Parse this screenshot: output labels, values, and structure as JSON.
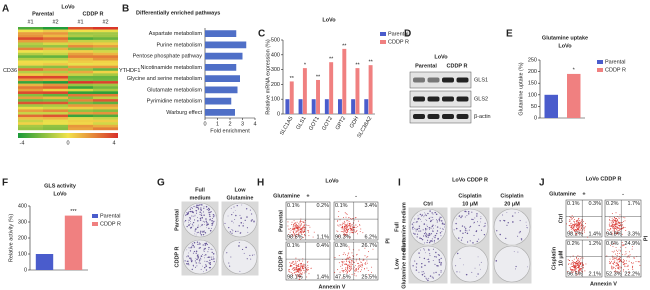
{
  "panel_labels": [
    "A",
    "B",
    "C",
    "D",
    "E",
    "F",
    "G",
    "H",
    "I",
    "J"
  ],
  "heatmap": {
    "title": "LoVo",
    "groups": [
      "Parental",
      "CDDP R"
    ],
    "replicates": [
      "#1",
      "#2",
      "#1",
      "#2"
    ],
    "left_label": "CD36",
    "right_label": "YTHDF1",
    "scale_labels": [
      "-4",
      "0",
      "4"
    ]
  },
  "chart_data": [
    {
      "type": "hbar",
      "title": "Differentially enriched pathways",
      "categories": [
        "Aspartate metabolism",
        "Purine metabolism",
        "Pentose phosphate pathway",
        "Nicotinamide metabolism",
        "Glycine and serine metabolism",
        "Glutamate metabolism",
        "Pyrimidine metabolism",
        "Warburg effect"
      ],
      "values": [
        2.5,
        3.3,
        3.0,
        2.5,
        2.8,
        2.6,
        2.1,
        2.4
      ],
      "color": "#4f6fc7",
      "xlim": [
        0,
        4
      ],
      "xticks": [
        0,
        1,
        2,
        3,
        4
      ],
      "xlabel": "Fold enrichment"
    },
    {
      "type": "bar",
      "title": "LoVo",
      "ylabel": "Relative mRNA expression (%)",
      "categories": [
        "SLC1A5",
        "GLS1",
        "GOT1",
        "GOT2",
        "GPT2",
        "GDH",
        "SLC38A2"
      ],
      "series": [
        {
          "name": "Parental",
          "color": "#4a5ccc",
          "values": [
            100,
            100,
            100,
            100,
            100,
            100,
            100
          ]
        },
        {
          "name": "CDDP R",
          "color": "#f08080",
          "values": [
            220,
            310,
            230,
            350,
            440,
            310,
            330
          ]
        }
      ],
      "annotations": [
        "**",
        "*",
        "**",
        "**",
        "**",
        "**",
        "**"
      ],
      "ylim": [
        0,
        500
      ],
      "yticks": [
        0,
        100,
        200,
        300,
        400,
        500
      ],
      "legend": "upper right"
    },
    {
      "type": "bar",
      "title": "Glutamine uptake",
      "subtitle": "LoVo",
      "ylabel": "Glutamine uptake (%)",
      "series": [
        {
          "name": "Parental",
          "color": "#4a5ccc",
          "values": [
            100
          ]
        },
        {
          "name": "CDDP R",
          "color": "#f08080",
          "values": [
            190
          ]
        }
      ],
      "annotation": "*",
      "ylim": [
        0,
        250
      ],
      "yticks": [
        0,
        50,
        100,
        150,
        200,
        250
      ],
      "legend": "right"
    },
    {
      "type": "bar",
      "title": "GLS activity",
      "subtitle": "LoVo",
      "ylabel": "Relative activity (%)",
      "series": [
        {
          "name": "Parental",
          "color": "#4a5ccc",
          "values": [
            100
          ]
        },
        {
          "name": "CDDP R",
          "color": "#f08080",
          "values": [
            340
          ]
        }
      ],
      "annotation": "***",
      "ylim": [
        0,
        400
      ],
      "yticks": [
        0,
        100,
        200,
        300,
        400
      ],
      "legend": "right"
    }
  ],
  "blot": {
    "title": "LoVo",
    "columns": [
      "Parental",
      "CDDP R"
    ],
    "rows": [
      "GLS1",
      "GLS2",
      "β-actin"
    ]
  },
  "colony_g": {
    "columns": [
      [
        "Full",
        "medium"
      ],
      [
        "Low",
        "Glutamine"
      ]
    ],
    "rows": [
      [
        "Parental"
      ],
      [
        "CDDP R"
      ]
    ]
  },
  "flow_h": {
    "title": "LoVo",
    "condition": "Glutamine",
    "levels": [
      "+",
      "-"
    ],
    "rows": [
      [
        "Parental"
      ],
      [
        "CDDP R"
      ]
    ],
    "quadrants": [
      [
        "0.1%",
        "0.2%",
        "98.6%",
        "1.1%"
      ],
      [
        "0.1%",
        "3.4%",
        "90.3%",
        "6.2%"
      ],
      [
        "0.1%",
        "0.4%",
        "98.1%",
        "1.4%"
      ],
      [
        "0.3%",
        "26.7%",
        "47.5%",
        "25.5%"
      ]
    ],
    "x_label": "Annexin V",
    "y_label": "PI"
  },
  "colony_i": {
    "title": "LoVo CDDP R",
    "columns": [
      [
        "Ctrl"
      ],
      [
        "Cisplatin",
        "10 μM"
      ],
      [
        "Cisplatin",
        "20 μM"
      ]
    ],
    "rows": [
      [
        "Full",
        "Glutamine medium"
      ],
      [
        "Low",
        "Glutamine medium"
      ]
    ]
  },
  "flow_j": {
    "title": "LoVo CDDP R",
    "condition": "Glutamine",
    "levels": [
      "+",
      "-"
    ],
    "rows": [
      [
        "Ctrl"
      ],
      [
        "Cisplatin",
        "10 μM"
      ]
    ],
    "quadrants": [
      [
        "0.1%",
        "0.3%",
        "98.2%",
        "1.4%"
      ],
      [
        "0.2%",
        "1.7%",
        "94.8%",
        "3.3%"
      ],
      [
        "0.2%",
        "1.2%",
        "96.5%",
        "2.1%"
      ],
      [
        "0.6%",
        "24.9%",
        "52.3%",
        "22.2%"
      ]
    ],
    "x_label": "Annexin V",
    "y_label": "PI"
  }
}
